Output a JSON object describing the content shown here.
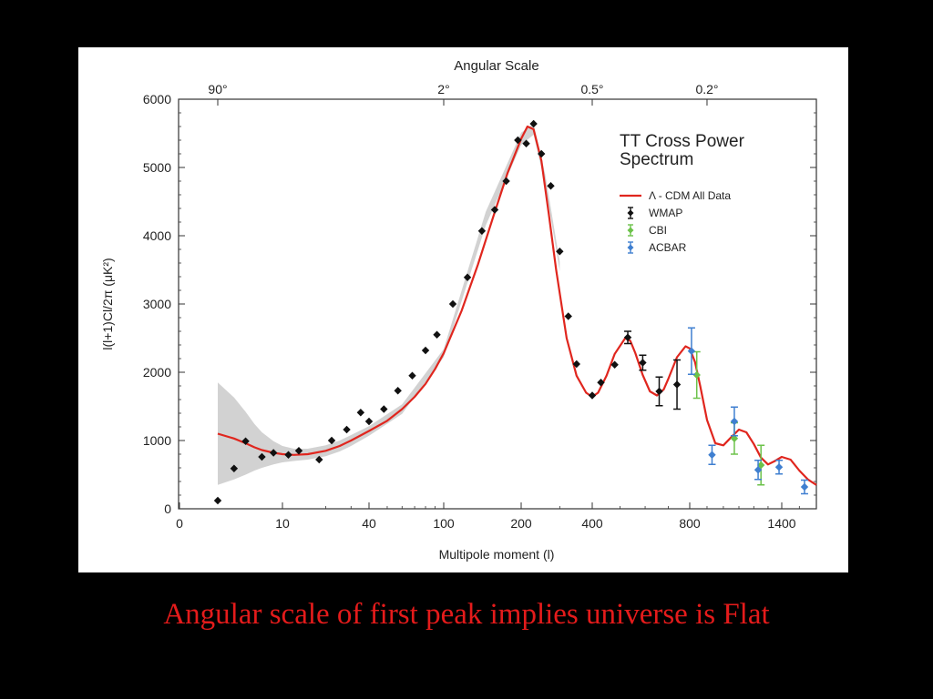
{
  "caption": "Angular scale of first peak implies universe is Flat",
  "colors": {
    "background": "#000000",
    "panel": "#ffffff",
    "caption": "#e41b1b",
    "model_line": "#e0261e",
    "wmap": "#111111",
    "cbi": "#6cc24a",
    "acbar": "#3f7fd0",
    "band": "#d2d2d2"
  },
  "chart_data": {
    "type": "scatter",
    "title": "TT Cross Power Spectrum",
    "top_axis_label": "Angular Scale",
    "top_ticks": [
      {
        "label": "90°",
        "ell": 2
      },
      {
        "label": "2°",
        "ell": 100
      },
      {
        "label": "0.5°",
        "ell": 400
      },
      {
        "label": "0.2°",
        "ell": 900
      }
    ],
    "xlabel": "Multipole moment (l)",
    "ylabel": "l(l+1)Cl/2π (μK²)",
    "x_scale": "mixed (logarithmic below 100, linear in sqrt above)",
    "x_tick_labels": [
      "0",
      "10",
      "40",
      "100",
      "200",
      "400",
      "800",
      "1400"
    ],
    "x_tick_ell": [
      0,
      10,
      40,
      100,
      200,
      400,
      800,
      1400
    ],
    "ylim": [
      0,
      6000
    ],
    "y_ticks": [
      0,
      1000,
      2000,
      3000,
      4000,
      5000,
      6000
    ],
    "legend_position": "top-right",
    "legend": [
      {
        "name": "Λ - CDM All Data",
        "kind": "line"
      },
      {
        "name": "WMAP",
        "kind": "points"
      },
      {
        "name": "CBI",
        "kind": "points"
      },
      {
        "name": "ACBAR",
        "kind": "points"
      }
    ],
    "model": {
      "name": "Λ - CDM All Data",
      "ell": [
        2,
        3,
        4,
        5,
        6,
        8,
        10,
        12,
        15,
        20,
        25,
        30,
        40,
        50,
        60,
        70,
        80,
        90,
        100,
        120,
        140,
        160,
        180,
        200,
        215,
        230,
        250,
        270,
        290,
        320,
        350,
        380,
        400,
        420,
        450,
        480,
        520,
        540,
        560,
        590,
        620,
        650,
        680,
        700,
        740,
        780,
        800,
        830,
        860,
        900,
        950,
        1000,
        1050,
        1100,
        1150,
        1200,
        1250,
        1300,
        1350,
        1400,
        1450,
        1500,
        1550,
        1600
      ],
      "values": [
        1100,
        1030,
        960,
        900,
        860,
        820,
        800,
        790,
        800,
        850,
        920,
        1000,
        1140,
        1290,
        1460,
        1640,
        1830,
        2050,
        2280,
        2900,
        3580,
        4280,
        4920,
        5420,
        5600,
        5560,
        5100,
        4300,
        3500,
        2500,
        1950,
        1700,
        1640,
        1700,
        1950,
        2270,
        2500,
        2460,
        2280,
        1960,
        1720,
        1660,
        1750,
        1900,
        2220,
        2380,
        2350,
        2150,
        1800,
        1300,
        960,
        930,
        1050,
        1160,
        1120,
        950,
        750,
        650,
        700,
        760,
        720,
        560,
        430,
        350
      ]
    },
    "cosmic_variance_band": {
      "ell": [
        2,
        3,
        4,
        5,
        6,
        8,
        10,
        12,
        15,
        20,
        25,
        30,
        40,
        60,
        100,
        150,
        200,
        230,
        260,
        300
      ],
      "lower": [
        350,
        430,
        500,
        560,
        600,
        650,
        680,
        700,
        720,
        770,
        840,
        920,
        1070,
        1390,
        2220,
        4150,
        5330,
        5480,
        4750,
        3480
      ],
      "upper": [
        1850,
        1630,
        1420,
        1240,
        1120,
        990,
        920,
        880,
        880,
        930,
        1000,
        1080,
        1210,
        1530,
        2340,
        4350,
        5510,
        5640,
        4900,
        3620
      ]
    },
    "series": [
      {
        "name": "WMAP",
        "points": [
          {
            "x": 2,
            "y": 120,
            "err": 0
          },
          {
            "x": 3,
            "y": 590,
            "err": 0
          },
          {
            "x": 4,
            "y": 990,
            "err": 0
          },
          {
            "x": 6,
            "y": 760,
            "err": 0
          },
          {
            "x": 8,
            "y": 820,
            "err": 0
          },
          {
            "x": 11,
            "y": 790,
            "err": 0
          },
          {
            "x": 13,
            "y": 850,
            "err": 0
          },
          {
            "x": 18,
            "y": 720,
            "err": 0
          },
          {
            "x": 22,
            "y": 1000,
            "err": 0
          },
          {
            "x": 28,
            "y": 1160,
            "err": 0
          },
          {
            "x": 35,
            "y": 1410,
            "err": 0
          },
          {
            "x": 40,
            "y": 1280,
            "err": 0
          },
          {
            "x": 48,
            "y": 1460,
            "err": 0
          },
          {
            "x": 57,
            "y": 1730,
            "err": 0
          },
          {
            "x": 68,
            "y": 1950,
            "err": 0
          },
          {
            "x": 80,
            "y": 2320,
            "err": 0
          },
          {
            "x": 92,
            "y": 2550,
            "err": 0
          },
          {
            "x": 110,
            "y": 3000,
            "err": 0
          },
          {
            "x": 127,
            "y": 3390,
            "err": 0
          },
          {
            "x": 145,
            "y": 4070,
            "err": 0
          },
          {
            "x": 162,
            "y": 4380,
            "err": 0
          },
          {
            "x": 178,
            "y": 4800,
            "err": 0
          },
          {
            "x": 195,
            "y": 5400,
            "err": 0
          },
          {
            "x": 212,
            "y": 5350,
            "err": 0
          },
          {
            "x": 230,
            "y": 5640,
            "err": 0
          },
          {
            "x": 250,
            "y": 5200,
            "err": 0
          },
          {
            "x": 275,
            "y": 4730,
            "err": 0
          },
          {
            "x": 300,
            "y": 3770,
            "err": 0
          },
          {
            "x": 325,
            "y": 2820,
            "err": 0
          },
          {
            "x": 350,
            "y": 2120,
            "err": 0
          },
          {
            "x": 400,
            "y": 1660,
            "err": 0
          },
          {
            "x": 430,
            "y": 1850,
            "err": 0
          },
          {
            "x": 480,
            "y": 2110,
            "err": 0
          },
          {
            "x": 530,
            "y": 2510,
            "err": 90
          },
          {
            "x": 590,
            "y": 2140,
            "err": 110
          },
          {
            "x": 660,
            "y": 1720,
            "err": 210
          },
          {
            "x": 740,
            "y": 1820,
            "err": 360
          }
        ]
      },
      {
        "name": "CBI",
        "points": [
          {
            "x": 840,
            "y": 1960,
            "err": 340
          },
          {
            "x": 1070,
            "y": 1030,
            "err": 230
          },
          {
            "x": 1250,
            "y": 640,
            "err": 290
          }
        ]
      },
      {
        "name": "ACBAR",
        "points": [
          {
            "x": 810,
            "y": 2310,
            "err": 340
          },
          {
            "x": 930,
            "y": 790,
            "err": 140
          },
          {
            "x": 1070,
            "y": 1280,
            "err": 210
          },
          {
            "x": 1230,
            "y": 570,
            "err": 140
          },
          {
            "x": 1380,
            "y": 610,
            "err": 100
          },
          {
            "x": 1530,
            "y": 320,
            "err": 100
          }
        ]
      }
    ]
  }
}
